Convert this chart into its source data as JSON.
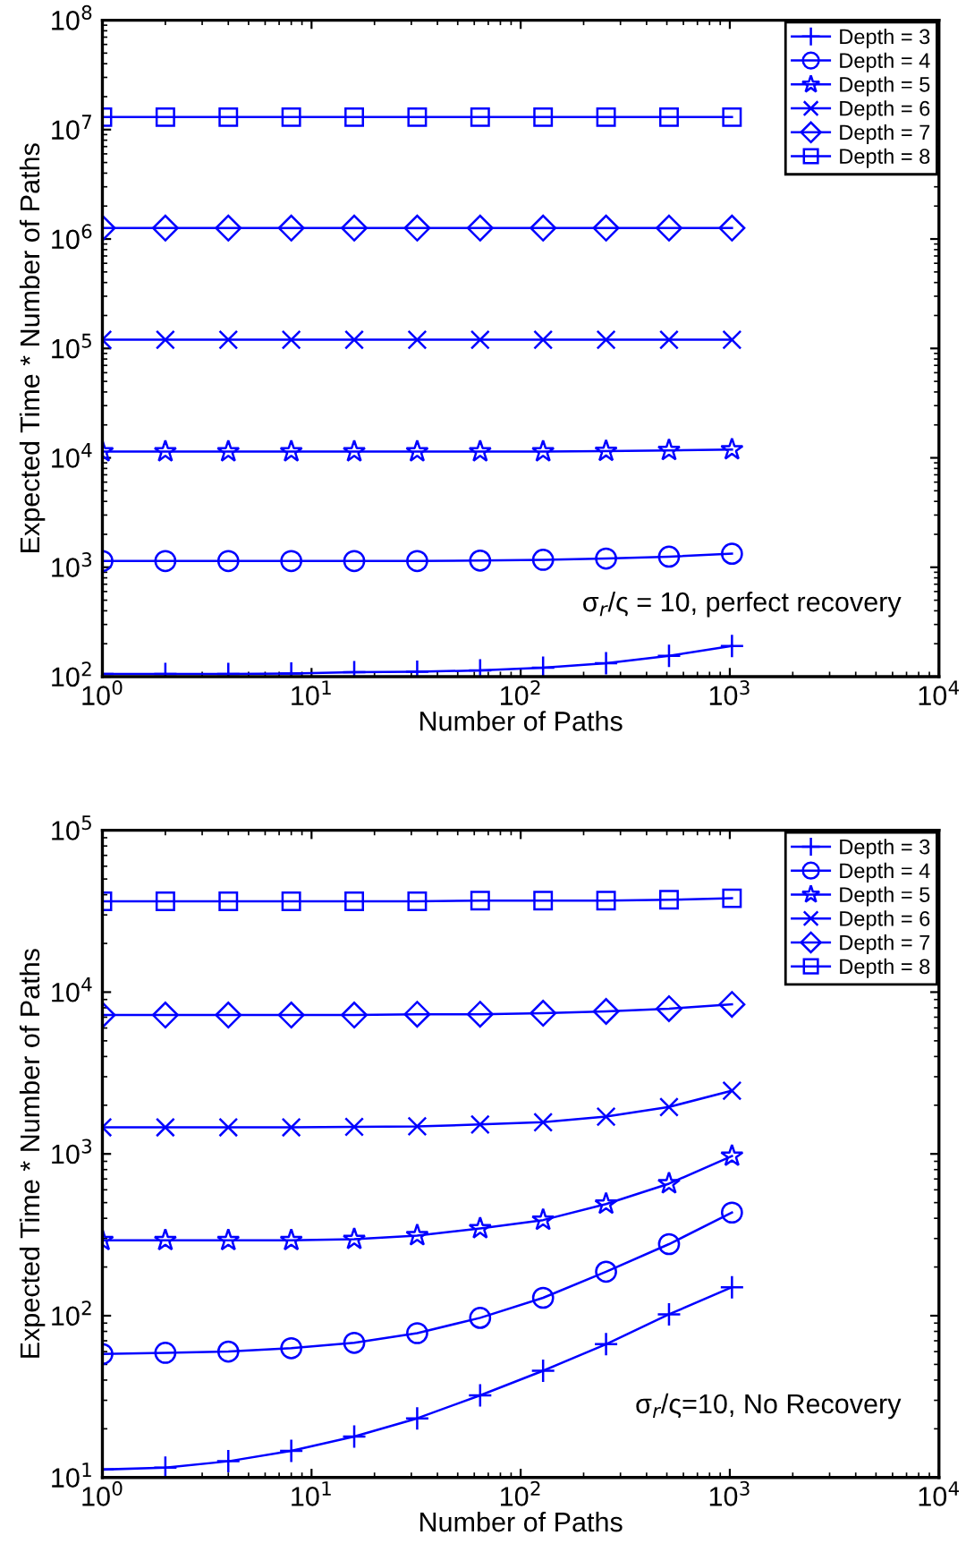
{
  "chart_data": [
    {
      "type": "line",
      "xlabel": "Number of Paths",
      "ylabel": "Expected Time * Number of Paths",
      "log": "xy",
      "x": [
        1,
        2,
        4,
        8,
        16,
        32,
        64,
        128,
        256,
        512,
        1024
      ],
      "xlim": [
        1,
        10000
      ],
      "xticks": [
        {
          "value": 1,
          "label": "10$^{0}$"
        },
        {
          "value": 10,
          "label": "10$^{1}$"
        },
        {
          "value": 100,
          "label": "10$^{2}$"
        },
        {
          "value": 1000,
          "label": "10$^{3}$"
        },
        {
          "value": 10000,
          "label": "10$^{4}$"
        }
      ],
      "ylim": [
        100,
        100000000
      ],
      "yticks": [
        {
          "value": 100,
          "label": "10$^{2}$"
        },
        {
          "value": 1000,
          "label": "10$^{3}$"
        },
        {
          "value": 10000,
          "label": "10$^{4}$"
        },
        {
          "value": 100000,
          "label": "10$^{5}$"
        },
        {
          "value": 1000000,
          "label": "10$^{6}$"
        },
        {
          "value": 10000000,
          "label": "10$^{7}$"
        },
        {
          "value": 100000000,
          "label": "10$^{8}$"
        }
      ],
      "legend": "top right",
      "grid": false,
      "line_style": "solid",
      "annotations": [
        "σ$_{r}$/ς = 10, perfect recovery"
      ],
      "series": [
        {
          "name": "Depth = 3",
          "color": "#0000ff",
          "marker": "plus",
          "values": [
            106,
            106,
            106,
            107,
            110,
            111,
            114,
            121,
            133,
            155,
            191
          ]
        },
        {
          "name": "Depth = 4",
          "color": "#0000ff",
          "marker": "circle",
          "values": [
            1140,
            1140,
            1140,
            1140,
            1140,
            1140,
            1150,
            1170,
            1200,
            1250,
            1330
          ]
        },
        {
          "name": "Depth = 5",
          "color": "#0000ff",
          "marker": "star",
          "values": [
            11400,
            11400,
            11400,
            11400,
            11400,
            11400,
            11400,
            11400,
            11500,
            11700,
            11900
          ]
        },
        {
          "name": "Depth = 6",
          "color": "#0000ff",
          "marker": "cross",
          "values": [
            120000,
            120000,
            120000,
            120000,
            120000,
            120000,
            120000,
            120000,
            120000,
            120000,
            120000
          ]
        },
        {
          "name": "Depth = 7",
          "color": "#0000ff",
          "marker": "diamond",
          "values": [
            1260000,
            1260000,
            1260000,
            1260000,
            1260000,
            1260000,
            1260000,
            1260000,
            1260000,
            1260000,
            1260000
          ]
        },
        {
          "name": "Depth = 8",
          "color": "#0000ff",
          "marker": "square",
          "values": [
            13000000,
            13000000,
            13000000,
            13000000,
            13000000,
            13000000,
            13000000,
            13000000,
            13000000,
            13000000,
            13000000
          ]
        }
      ]
    },
    {
      "type": "line",
      "xlabel": "Number of Paths",
      "ylabel": "Expected Time * Number of Paths",
      "log": "xy",
      "x": [
        1,
        2,
        4,
        8,
        16,
        32,
        64,
        128,
        256,
        512,
        1024
      ],
      "xlim": [
        1,
        10000
      ],
      "xticks": [
        {
          "value": 1,
          "label": "10$^{0}$"
        },
        {
          "value": 10,
          "label": "10$^{1}$"
        },
        {
          "value": 100,
          "label": "10$^{2}$"
        },
        {
          "value": 1000,
          "label": "10$^{3}$"
        },
        {
          "value": 10000,
          "label": "10$^{4}$"
        }
      ],
      "ylim": [
        10,
        100000
      ],
      "yticks": [
        {
          "value": 10,
          "label": "10$^{1}$"
        },
        {
          "value": 100,
          "label": "10$^{2}$"
        },
        {
          "value": 1000,
          "label": "10$^{3}$"
        },
        {
          "value": 10000,
          "label": "10$^{4}$"
        },
        {
          "value": 100000,
          "label": "10$^{5}$"
        }
      ],
      "legend": "top right",
      "grid": false,
      "line_style": "solid",
      "annotations": [
        "σ$_{r}$/ς=10, No Recovery"
      ],
      "series": [
        {
          "name": "Depth = 3",
          "color": "#0000ff",
          "marker": "plus",
          "values": [
            11.2,
            11.5,
            12.6,
            14.6,
            17.9,
            23.2,
            32.2,
            45.7,
            66.7,
            102,
            150
          ]
        },
        {
          "name": "Depth = 4",
          "color": "#0000ff",
          "marker": "circle",
          "values": [
            58,
            59,
            60,
            63,
            68,
            78,
            97,
            129,
            187,
            277,
            434
          ]
        },
        {
          "name": "Depth = 5",
          "color": "#0000ff",
          "marker": "star",
          "values": [
            292,
            292,
            292,
            292,
            297,
            313,
            346,
            390,
            490,
            655,
            970
          ]
        },
        {
          "name": "Depth = 6",
          "color": "#0000ff",
          "marker": "cross",
          "values": [
            1460,
            1460,
            1460,
            1460,
            1470,
            1480,
            1520,
            1570,
            1700,
            1950,
            2460
          ]
        },
        {
          "name": "Depth = 7",
          "color": "#0000ff",
          "marker": "diamond",
          "values": [
            7220,
            7220,
            7220,
            7220,
            7220,
            7300,
            7300,
            7400,
            7600,
            7900,
            8400
          ]
        },
        {
          "name": "Depth = 8",
          "color": "#0000ff",
          "marker": "square",
          "values": [
            36400,
            36400,
            36400,
            36400,
            36400,
            36400,
            36800,
            36800,
            36800,
            37200,
            38000
          ]
        }
      ]
    }
  ]
}
